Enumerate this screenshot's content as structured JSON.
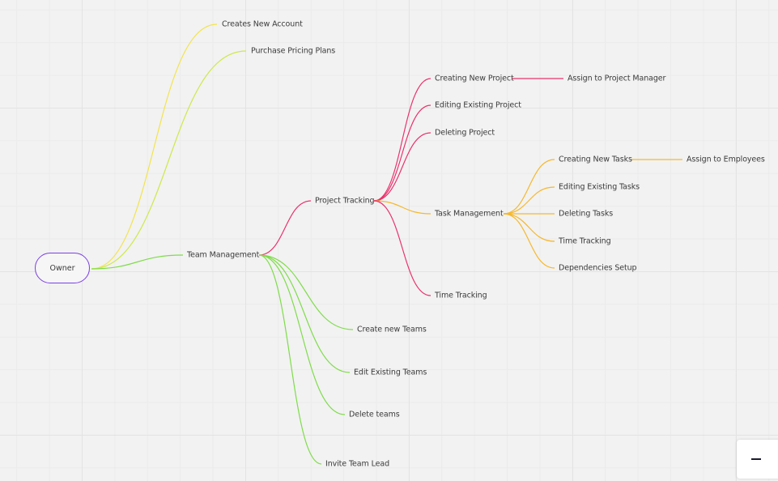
{
  "mindmap": {
    "root": {
      "label": "Owner",
      "color": "#7b3fe4"
    },
    "nodes": {
      "createsAccount": "Creates New Account",
      "purchasePricing": "Purchase Pricing Plans",
      "teamManagement": "Team Management",
      "projectTracking": "Project Tracking",
      "creatingProject": "Creating New Project",
      "assignPM": "Assign to Project Manager",
      "editingProject": "Editing Existing Project",
      "deletingProject": "Deleting Project",
      "taskManagement": "Task Management",
      "creatingTasks": "Creating New Tasks",
      "assignEmployees": "Assign to Employees",
      "editingTasks": "Editing Existing Tasks",
      "deletingTasks": "Deleting Tasks",
      "timeTrackingTasks": "Time Tracking",
      "dependencies": "Dependencies Setup",
      "timeTrackingProject": "Time Tracking",
      "createTeams": "Create new Teams",
      "editTeams": "Edit Existing Teams",
      "deleteTeams": "Delete teams",
      "inviteLead": "Invite Team Lead"
    },
    "branch_colors": {
      "account": "#f2e44a",
      "pricing": "#cfe84a",
      "team": "#7fdc4a",
      "project": "#e8336e",
      "task": "#f5b82e"
    }
  },
  "controls": {
    "zoom_out_icon": "minus-icon"
  }
}
